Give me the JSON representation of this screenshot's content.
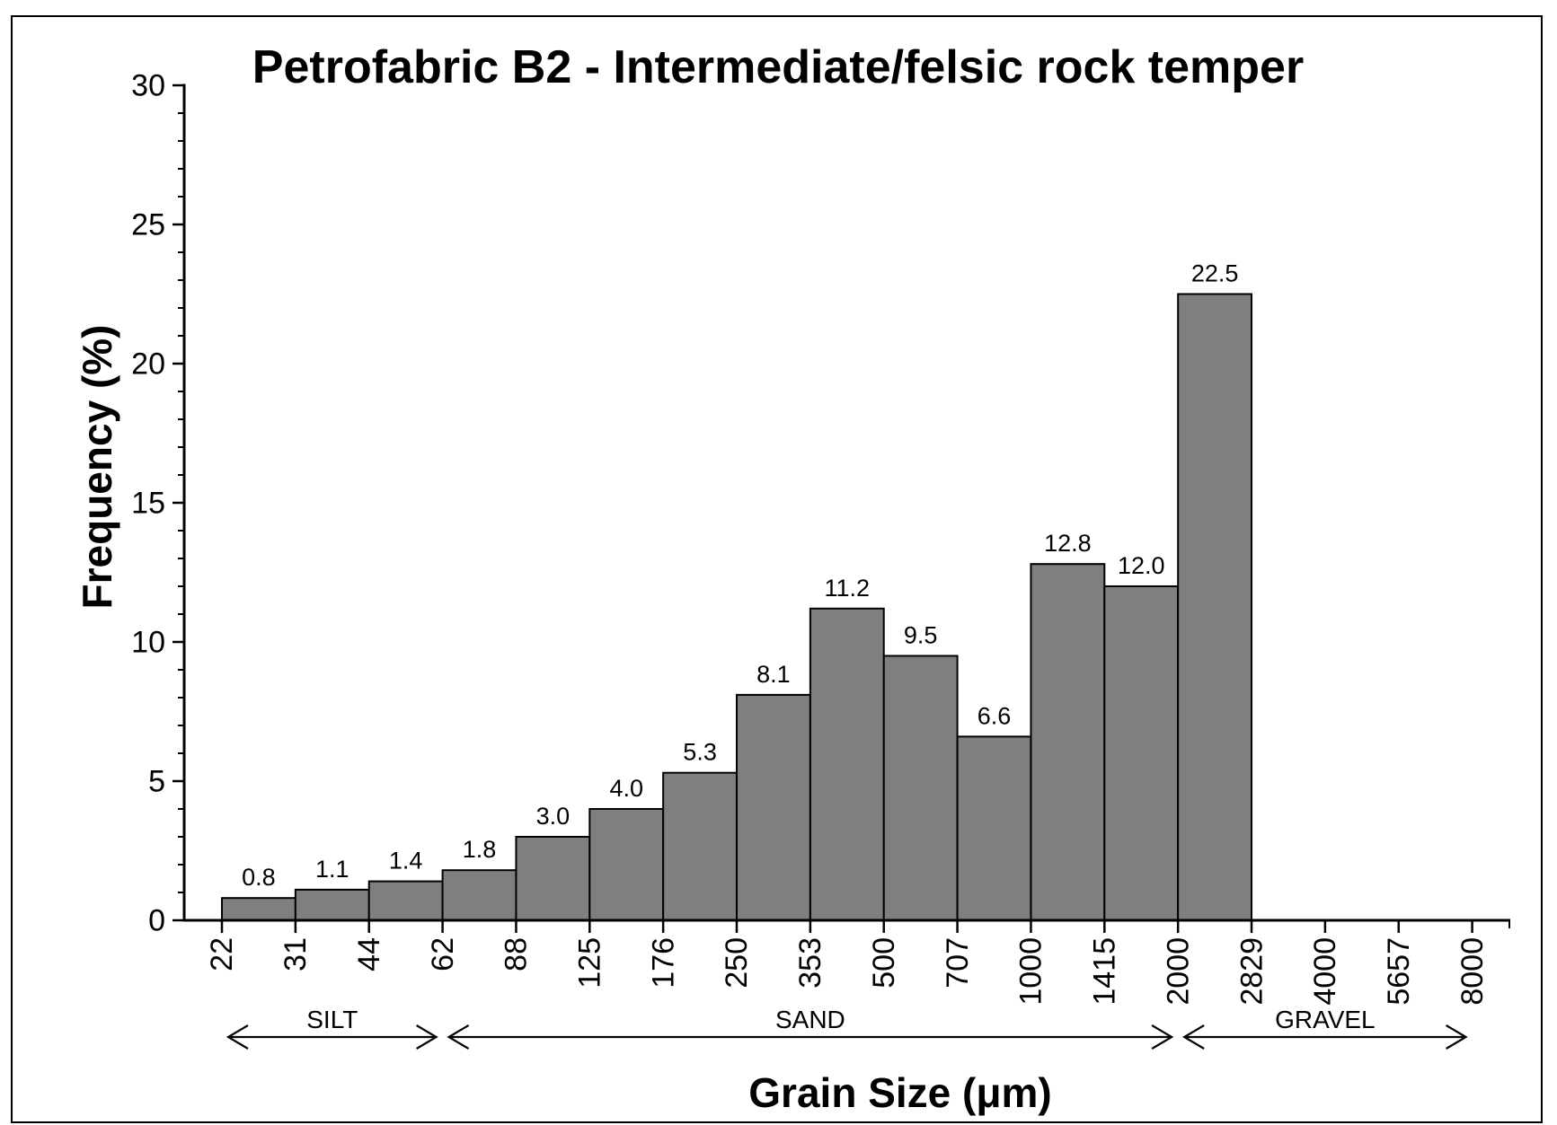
{
  "figure": {
    "title": "Petrofabric B2 - Intermediate/felsic rock temper",
    "y_axis_title": "Frequency (%)",
    "x_axis_title": "Grain Size (μm)"
  },
  "chart_data": {
    "type": "bar",
    "title": "Petrofabric B2 - Intermediate/felsic rock temper",
    "xlabel": "Grain Size (μm)",
    "ylabel": "Frequency (%)",
    "ylim": [
      0,
      30
    ],
    "y_major_ticks": [
      0,
      5,
      10,
      15,
      20,
      25,
      30
    ],
    "y_major_tick_labels": [
      "0",
      "5",
      "10",
      "15",
      "20",
      "25",
      "30"
    ],
    "y_minor_tick_step": 1,
    "grid": "off",
    "legend": "none",
    "x_tick_labels": [
      "22",
      "31",
      "44",
      "62",
      "88",
      "125",
      "176",
      "250",
      "353",
      "500",
      "707",
      "1000",
      "1415",
      "2000",
      "2829",
      "4000",
      "5657",
      "8000"
    ],
    "bin_edges_um": [
      22,
      31,
      44,
      62,
      88,
      125,
      176,
      250,
      353,
      500,
      707,
      1000,
      1415,
      2000,
      2829,
      4000,
      5657,
      8000
    ],
    "values": [
      0.8,
      1.1,
      1.4,
      1.8,
      3.0,
      4.0,
      5.3,
      8.1,
      11.2,
      9.5,
      6.6,
      12.8,
      12.0,
      22.5
    ],
    "value_labels": [
      "0.8",
      "1.1",
      "1.4",
      "1.8",
      "3.0",
      "4.0",
      "5.3",
      "8.1",
      "11.2",
      "9.5",
      "6.6",
      "12.8",
      "12.0",
      "22.5"
    ],
    "zones": [
      {
        "label": "SILT",
        "from_um": 22,
        "to_um": 62
      },
      {
        "label": "SAND",
        "from_um": 62,
        "to_um": 2000
      },
      {
        "label": "GRAVEL",
        "from_um": 2000,
        "to_um": 8000
      }
    ],
    "colors": {
      "bar_fill": "#7f7f7f",
      "bar_stroke": "#000000",
      "axis": "#000000",
      "background": "#ffffff"
    }
  }
}
